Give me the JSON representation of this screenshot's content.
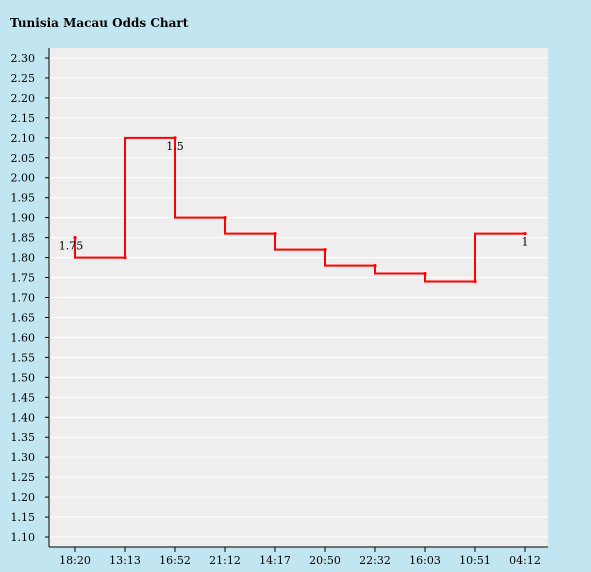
{
  "page": {
    "title": "Tunisia Macau Odds Chart"
  },
  "chart_data": {
    "type": "line",
    "step": true,
    "title": "Tunisia Macau Odds Chart",
    "xlabel": "",
    "ylabel": "",
    "ylim": [
      1.075,
      2.325
    ],
    "y_ticks": [
      "1.10",
      "1.15",
      "1.20",
      "1.25",
      "1.30",
      "1.35",
      "1.40",
      "1.45",
      "1.50",
      "1.55",
      "1.60",
      "1.65",
      "1.70",
      "1.75",
      "1.80",
      "1.85",
      "1.90",
      "1.95",
      "2.00",
      "2.05",
      "2.10",
      "2.15",
      "2.20",
      "2.25",
      "2.30"
    ],
    "categories": [
      "18:20",
      "13:13",
      "16:52",
      "21:12",
      "14:17",
      "20:50",
      "22:32",
      "16:03",
      "10:51",
      "04:12"
    ],
    "series": [
      {
        "values": [
          1.85,
          1.8,
          2.1,
          1.9,
          1.86,
          1.82,
          1.78,
          1.76,
          1.74,
          1.86
        ],
        "color": "#ff0000"
      }
    ],
    "annotations": [
      {
        "index": 0,
        "text": "1.75"
      },
      {
        "index": 2,
        "text": "1.5"
      },
      {
        "index": 9,
        "text": "1"
      }
    ],
    "grid": true,
    "plot_background": "#eeeeee",
    "grid_color": "#ffffff"
  }
}
